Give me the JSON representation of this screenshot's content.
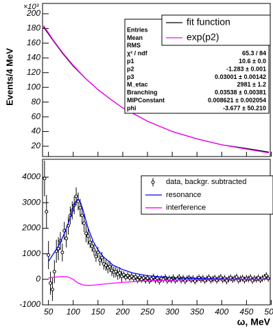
{
  "chart_data": [
    {
      "type": "line",
      "y_label": "Events/4 MeV",
      "y_multiplier": "×10³",
      "xlim": [
        38,
        498
      ],
      "ylim": [
        6,
        214
      ],
      "yticks": [
        20,
        40,
        60,
        80,
        100,
        120,
        140,
        160,
        180,
        200
      ],
      "legend": "top-right",
      "series": [
        {
          "name": "fit function",
          "color": "#000000",
          "x": [
            40,
            60,
            80,
            100,
            125,
            150,
            175,
            200,
            250,
            300,
            350,
            400,
            450,
            495
          ],
          "values": [
            182,
            163,
            145,
            129,
            112,
            97,
            84,
            72,
            54,
            40,
            30,
            22,
            17,
            12
          ]
        },
        {
          "name": "exp(p2)",
          "color": "#ff00ff",
          "x": [
            40,
            60,
            80,
            100,
            125,
            150,
            175,
            200,
            250,
            300,
            350,
            400,
            450,
            495
          ],
          "values": [
            184,
            164,
            146,
            130,
            112,
            97,
            84,
            72,
            54,
            40,
            30,
            22,
            16,
            11
          ]
        }
      ],
      "stats": [
        {
          "label": "Entries"
        },
        {
          "label": "Mean"
        },
        {
          "label": "RMS"
        },
        {
          "label": "χ² / ndf",
          "value": "65.3 / 84"
        },
        {
          "label": "p1",
          "value": "10.6 ± 0.0"
        },
        {
          "label": "p2",
          "value": "-1.283 ± 0.001"
        },
        {
          "label": "p3",
          "value": "0.03001 ± 0.00142"
        },
        {
          "label": "M_etac",
          "value": "2981 ± 1.2"
        },
        {
          "label": "Branching",
          "value": "0.03538 ± 0.00381"
        },
        {
          "label": "MIPConstant",
          "value": "0.008621 ± 0.002054"
        },
        {
          "label": "phi",
          "value": "-3.677 ± 50.210"
        }
      ]
    },
    {
      "type": "errorbar",
      "x_label": "ω, MeV",
      "xlim": [
        38,
        498
      ],
      "ylim": [
        -1000,
        4700
      ],
      "xticks": [
        50,
        100,
        150,
        200,
        250,
        300,
        350,
        400,
        450,
        500
      ],
      "yticks": [
        -1000,
        0,
        1000,
        2000,
        3000,
        4000
      ],
      "legend": "top-right",
      "series": [
        {
          "name": "data, backgr. subtracted",
          "color": "#000000",
          "x": [
            42,
            46,
            50,
            54,
            58,
            62,
            66,
            70,
            74,
            78,
            82,
            86,
            90,
            94,
            98,
            102,
            106,
            110,
            114,
            118,
            122,
            126,
            130,
            134,
            138,
            142,
            146,
            150,
            154,
            158,
            162,
            166,
            170,
            174,
            178,
            182,
            186,
            190,
            194,
            198,
            202,
            206,
            210,
            214,
            218,
            222,
            226,
            230,
            234,
            238,
            242,
            246,
            250,
            254,
            258,
            262,
            266,
            270,
            274,
            278,
            282,
            286,
            290,
            294,
            298,
            302,
            306,
            310,
            314,
            318,
            322,
            326,
            330,
            334,
            338,
            342,
            346,
            350,
            354,
            358,
            362,
            366,
            370,
            374,
            378,
            382,
            386,
            390,
            394,
            398,
            402,
            406,
            410,
            414,
            418,
            422,
            426,
            430,
            434,
            438,
            442,
            446,
            450,
            454,
            458,
            462,
            466,
            470,
            474,
            478,
            482,
            486,
            490,
            494
          ],
          "values": [
            3950,
            2650,
            950,
            -150,
            -400,
            300,
            1100,
            1200,
            1500,
            1050,
            1900,
            1600,
            2100,
            2500,
            2700,
            2900,
            3250,
            3050,
            2800,
            2500,
            2200,
            1800,
            1700,
            1450,
            1300,
            1150,
            900,
            1050,
            750,
            850,
            600,
            550,
            450,
            500,
            350,
            280,
            300,
            200,
            250,
            120,
            180,
            80,
            150,
            60,
            120,
            40,
            100,
            -20,
            80,
            0,
            60,
            -40,
            50,
            -60,
            20,
            90,
            -30,
            40,
            -80,
            30,
            0,
            70,
            -50,
            20,
            -20,
            60,
            -40,
            10,
            80,
            -30,
            40,
            -60,
            20,
            50,
            -20,
            30,
            -70,
            10,
            60,
            -10,
            40,
            -50,
            20,
            70,
            -30,
            10,
            50,
            -40,
            30,
            80,
            -20,
            40,
            -60,
            20,
            60,
            -10,
            30,
            90,
            -40,
            20,
            50,
            -30,
            40,
            10,
            70,
            -50,
            30,
            0,
            60,
            -20,
            40,
            80,
            150,
            30
          ],
          "errors": [
            700,
            650,
            550,
            450,
            450,
            450,
            450,
            450,
            350,
            350,
            350,
            350,
            350,
            350,
            350,
            350,
            350,
            350,
            350,
            350,
            350,
            350,
            350,
            220,
            220,
            220,
            220,
            220,
            220,
            220,
            220,
            220,
            220,
            220,
            220,
            220,
            220,
            220,
            220,
            220,
            130,
            130,
            130,
            130,
            130,
            130,
            130,
            130,
            130,
            130,
            130,
            130,
            130,
            130,
            130,
            130,
            130,
            130,
            130,
            130,
            130,
            130,
            130,
            130,
            130,
            130,
            130,
            130,
            130,
            130,
            130,
            130,
            130,
            130,
            130,
            130,
            130,
            130,
            130,
            130,
            130,
            130,
            130,
            130,
            130,
            130,
            130,
            130,
            130,
            130,
            130,
            130,
            130,
            130,
            130,
            130,
            130,
            130,
            130,
            130,
            130,
            130,
            130,
            130,
            130,
            130,
            130,
            130,
            130,
            130,
            130,
            130,
            130,
            130
          ]
        },
        {
          "name": "resonance",
          "color": "#0000ff",
          "x": [
            50,
            60,
            70,
            80,
            90,
            100,
            105,
            110,
            115,
            120,
            130,
            140,
            150,
            160,
            180,
            200,
            220,
            250,
            300,
            350,
            400,
            450,
            495
          ],
          "values": [
            700,
            1000,
            1300,
            1700,
            2200,
            2800,
            3050,
            3150,
            3000,
            2700,
            2000,
            1500,
            1150,
            900,
            560,
            380,
            250,
            140,
            60,
            30,
            15,
            8,
            5
          ]
        },
        {
          "name": "interference",
          "color": "#ff00ff",
          "x": [
            50,
            60,
            70,
            80,
            90,
            100,
            110,
            120,
            130,
            140,
            150,
            170,
            200,
            250,
            300,
            350,
            400,
            450,
            495
          ],
          "values": [
            50,
            80,
            100,
            110,
            90,
            0,
            -150,
            -220,
            -240,
            -230,
            -210,
            -170,
            -120,
            -60,
            -30,
            -15,
            -8,
            -4,
            -2
          ]
        }
      ]
    }
  ]
}
